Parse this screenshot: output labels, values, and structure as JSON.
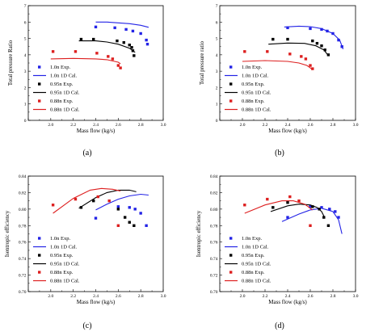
{
  "chart_data": [
    {
      "type": "scatter",
      "caption": "(a)",
      "xlabel": "Mass flow (kg/s)",
      "ylabel": "Total pressure Ratio",
      "xlim": [
        1.8,
        3.0
      ],
      "ylim": [
        0,
        7
      ],
      "xticks": [
        "",
        "2.0",
        "2.2",
        "2.4",
        "2.6",
        "2.8",
        "3.0"
      ],
      "yticks": [
        "0",
        "1",
        "2",
        "3",
        "4",
        "5",
        "6",
        "7"
      ],
      "grid": false,
      "legend_position": "bottom-left",
      "series": [
        {
          "name": "1.0n  Exp.",
          "kind": "points",
          "color": "#2323e6",
          "x": [
            2.4,
            2.57,
            2.67,
            2.73,
            2.8,
            2.85,
            2.86
          ],
          "y": [
            5.7,
            5.65,
            5.55,
            5.45,
            5.3,
            4.9,
            4.65
          ]
        },
        {
          "name": "1.0n  1D Cal.",
          "kind": "line",
          "color": "#2323e6",
          "x": [
            2.4,
            2.5,
            2.6,
            2.7,
            2.8,
            2.87
          ],
          "y": [
            6.0,
            6.0,
            5.95,
            5.9,
            5.8,
            5.68
          ]
        },
        {
          "name": "0.95n  Exp.",
          "kind": "points",
          "color": "#000000",
          "x": [
            2.27,
            2.38,
            2.59,
            2.65,
            2.7,
            2.72,
            2.73,
            2.74
          ],
          "y": [
            4.95,
            4.95,
            4.85,
            4.75,
            4.6,
            4.45,
            4.25,
            3.95
          ]
        },
        {
          "name": "0.95n  1D Cal.",
          "kind": "line",
          "color": "#000000",
          "x": [
            2.25,
            2.4,
            2.5,
            2.6,
            2.7,
            2.75
          ],
          "y": [
            4.85,
            4.85,
            4.78,
            4.65,
            4.4,
            4.15
          ]
        },
        {
          "name": "0.88n  Exp.",
          "kind": "points",
          "color": "#dd1f1f",
          "x": [
            2.02,
            2.22,
            2.41,
            2.51,
            2.55,
            2.6,
            2.62
          ],
          "y": [
            4.2,
            4.2,
            4.1,
            3.9,
            3.75,
            3.35,
            3.2
          ]
        },
        {
          "name": "0.88n  1D Cal.",
          "kind": "line",
          "color": "#dd1f1f",
          "x": [
            2.0,
            2.2,
            2.4,
            2.5,
            2.6,
            2.62
          ],
          "y": [
            3.75,
            3.78,
            3.75,
            3.7,
            3.55,
            3.45
          ]
        }
      ]
    },
    {
      "type": "scatter",
      "caption": "(b)",
      "xlabel": "Mass flow (kg/s)",
      "ylabel": "Total pressure ratio",
      "xlim": [
        1.8,
        3.0
      ],
      "ylim": [
        0,
        7
      ],
      "xticks": [
        "",
        "2.0",
        "2.2",
        "2.4",
        "2.6",
        "2.8",
        "3.0"
      ],
      "yticks": [
        "0",
        "1",
        "2",
        "3",
        "4",
        "5",
        "6",
        "7"
      ],
      "grid": false,
      "legend_position": "bottom-left",
      "series": [
        {
          "name": "1.0n  Exp.",
          "kind": "points",
          "color": "#2323e6",
          "x": [
            2.4,
            2.6,
            2.7,
            2.75,
            2.8,
            2.85,
            2.88
          ],
          "y": [
            5.65,
            5.6,
            5.55,
            5.45,
            5.3,
            4.9,
            4.5
          ]
        },
        {
          "name": "1.0n  1D Cal.",
          "kind": "line",
          "color": "#2323e6",
          "x": [
            2.37,
            2.5,
            2.6,
            2.7,
            2.8,
            2.86,
            2.89
          ],
          "y": [
            5.7,
            5.75,
            5.72,
            5.6,
            5.3,
            4.9,
            4.35
          ]
        },
        {
          "name": "0.95n  Exp.",
          "kind": "points",
          "color": "#000000",
          "x": [
            2.27,
            2.4,
            2.62,
            2.66,
            2.7,
            2.73,
            2.76
          ],
          "y": [
            4.95,
            4.95,
            4.85,
            4.7,
            4.55,
            4.3,
            4.0
          ]
        },
        {
          "name": "0.95n  1D Cal.",
          "kind": "line",
          "color": "#000000",
          "x": [
            2.23,
            2.4,
            2.55,
            2.65,
            2.72,
            2.76
          ],
          "y": [
            4.65,
            4.72,
            4.7,
            4.55,
            4.3,
            3.95
          ]
        },
        {
          "name": "0.88n  Exp.",
          "kind": "points",
          "color": "#dd1f1f",
          "x": [
            2.02,
            2.22,
            2.42,
            2.52,
            2.56,
            2.6,
            2.62
          ],
          "y": [
            4.2,
            4.2,
            4.05,
            3.9,
            3.75,
            3.35,
            3.15
          ]
        },
        {
          "name": "0.88n  1D Cal.",
          "kind": "line",
          "color": "#dd1f1f",
          "x": [
            2.0,
            2.2,
            2.4,
            2.5,
            2.57,
            2.61
          ],
          "y": [
            3.6,
            3.65,
            3.6,
            3.5,
            3.35,
            3.15
          ]
        }
      ]
    },
    {
      "type": "scatter",
      "caption": "(c)",
      "xlabel": "Mass flow (kg/s)",
      "ylabel": "Isentropic efficiency",
      "xlim": [
        1.8,
        3.0
      ],
      "ylim": [
        0.7,
        0.84
      ],
      "xticks": [
        "",
        "2.0",
        "2.2",
        "2.4",
        "2.6",
        "2.8",
        "3.0"
      ],
      "yticks": [
        "0.70",
        "0.72",
        "0.74",
        "0.76",
        "0.78",
        "0.80",
        "0.82",
        "0.84"
      ],
      "grid": false,
      "legend_position": "bottom-left",
      "series": [
        {
          "name": "1.0n  Exp.",
          "kind": "points",
          "color": "#2323e6",
          "x": [
            2.4,
            2.6,
            2.7,
            2.75,
            2.8,
            2.85
          ],
          "y": [
            0.789,
            0.803,
            0.802,
            0.8,
            0.795,
            0.78
          ]
        },
        {
          "name": "1.0n  1D Cal.",
          "kind": "line",
          "color": "#2323e6",
          "x": [
            2.4,
            2.5,
            2.6,
            2.7,
            2.8,
            2.87
          ],
          "y": [
            0.799,
            0.806,
            0.812,
            0.816,
            0.818,
            0.817
          ]
        },
        {
          "name": "0.95n  Exp.",
          "kind": "points",
          "color": "#000000",
          "x": [
            2.27,
            2.38,
            2.6,
            2.66,
            2.7,
            2.74
          ],
          "y": [
            0.802,
            0.81,
            0.8,
            0.79,
            0.784,
            0.78
          ]
        },
        {
          "name": "0.95n  1D Cal.",
          "kind": "line",
          "color": "#000000",
          "x": [
            2.25,
            2.4,
            2.5,
            2.6,
            2.7,
            2.76
          ],
          "y": [
            0.801,
            0.814,
            0.82,
            0.823,
            0.823,
            0.821
          ]
        },
        {
          "name": "0.88n  Exp.",
          "kind": "points",
          "color": "#dd1f1f",
          "x": [
            2.02,
            2.22,
            2.42,
            2.52,
            2.6
          ],
          "y": [
            0.805,
            0.812,
            0.815,
            0.81,
            0.78
          ]
        },
        {
          "name": "0.88n  1D Cal.",
          "kind": "line",
          "color": "#dd1f1f",
          "x": [
            2.02,
            2.2,
            2.35,
            2.45,
            2.55,
            2.62
          ],
          "y": [
            0.795,
            0.813,
            0.823,
            0.825,
            0.824,
            0.822
          ]
        }
      ]
    },
    {
      "type": "scatter",
      "caption": "(d)",
      "xlabel": "Mass flow (kg/s)",
      "ylabel": "Isentropic efficiency",
      "xlim": [
        1.8,
        3.0
      ],
      "ylim": [
        0.7,
        0.84
      ],
      "xticks": [
        "",
        "2.0",
        "2.2",
        "2.4",
        "2.6",
        "2.8",
        "3.0"
      ],
      "yticks": [
        "0.70",
        "0.72",
        "0.74",
        "0.76",
        "0.78",
        "0.80",
        "0.82",
        "0.84"
      ],
      "grid": false,
      "legend_position": "bottom-left",
      "series": [
        {
          "name": "1.0n  Exp.",
          "kind": "points",
          "color": "#2323e6",
          "x": [
            2.4,
            2.6,
            2.7,
            2.77,
            2.82,
            2.85
          ],
          "y": [
            0.79,
            0.803,
            0.802,
            0.8,
            0.797,
            0.79
          ]
        },
        {
          "name": "1.0n  1D Cal.",
          "kind": "line",
          "color": "#2323e6",
          "x": [
            2.35,
            2.5,
            2.6,
            2.7,
            2.8,
            2.85,
            2.88
          ],
          "y": [
            0.785,
            0.794,
            0.799,
            0.801,
            0.797,
            0.787,
            0.77
          ]
        },
        {
          "name": "0.95n  Exp.",
          "kind": "points",
          "color": "#000000",
          "x": [
            2.27,
            2.4,
            2.62,
            2.68,
            2.72,
            2.76
          ],
          "y": [
            0.802,
            0.808,
            0.803,
            0.8,
            0.79,
            0.78
          ]
        },
        {
          "name": "0.95n  1D Cal.",
          "kind": "line",
          "color": "#000000",
          "x": [
            2.25,
            2.4,
            2.5,
            2.6,
            2.66,
            2.7,
            2.73
          ],
          "y": [
            0.797,
            0.804,
            0.806,
            0.805,
            0.802,
            0.797,
            0.789
          ]
        },
        {
          "name": "0.88n  Exp.",
          "kind": "points",
          "color": "#dd1f1f",
          "x": [
            2.02,
            2.22,
            2.42,
            2.5,
            2.6
          ],
          "y": [
            0.805,
            0.812,
            0.815,
            0.81,
            0.78
          ]
        },
        {
          "name": "0.88n  1D Cal.",
          "kind": "line",
          "color": "#dd1f1f",
          "x": [
            2.02,
            2.2,
            2.35,
            2.45,
            2.55,
            2.62
          ],
          "y": [
            0.795,
            0.805,
            0.81,
            0.81,
            0.806,
            0.799
          ]
        }
      ]
    }
  ]
}
